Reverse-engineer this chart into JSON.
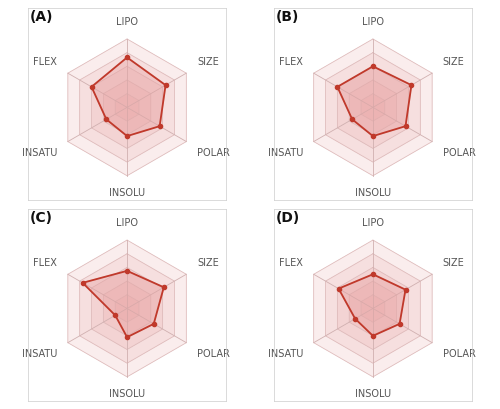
{
  "labels": [
    "LIPO",
    "SIZE",
    "POLAR",
    "INSOLU",
    "INSATU",
    "FLEX"
  ],
  "num_vars": 6,
  "grid_levels": [
    0.2,
    0.4,
    0.6,
    0.8,
    1.0
  ],
  "charts": [
    {
      "label": "(A)",
      "values": [
        0.73,
        0.65,
        0.55,
        0.42,
        0.35,
        0.6
      ]
    },
    {
      "label": "(B)",
      "values": [
        0.6,
        0.65,
        0.55,
        0.42,
        0.35,
        0.6
      ]
    },
    {
      "label": "(C)",
      "values": [
        0.55,
        0.62,
        0.45,
        0.42,
        0.2,
        0.75
      ]
    },
    {
      "label": "(D)",
      "values": [
        0.5,
        0.55,
        0.45,
        0.4,
        0.3,
        0.58
      ]
    }
  ],
  "line_color": "#c0392b",
  "fill_color": "#e8a0a0",
  "grid_color": "#ddb8b8",
  "spoke_color": "#d0b0b0",
  "label_color": "#555555",
  "bg_color": "#ffffff",
  "label_fontsize": 7.0,
  "panel_label_color": "#111111",
  "panel_label_fontsize": 10,
  "dot_size": 3.0,
  "line_width": 1.3
}
